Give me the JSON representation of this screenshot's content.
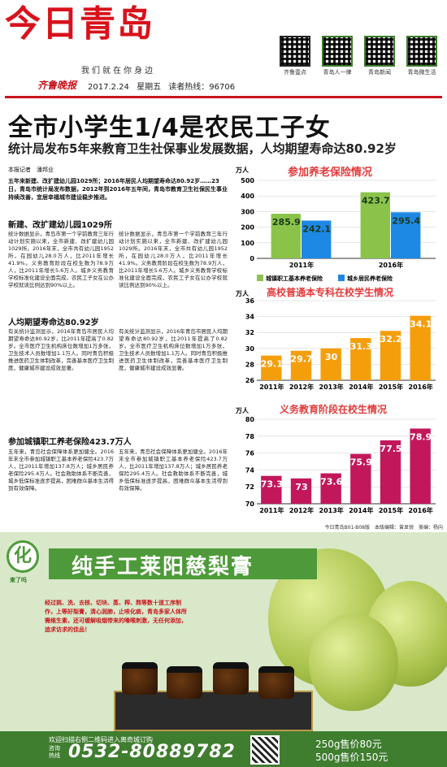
{
  "masthead": {
    "title": "今日青岛",
    "slogan": "我们就在你身边",
    "paper": "齐鲁晚报",
    "date": "2017.2.24",
    "weekday": "星期五",
    "hotline": "读者热线：96706",
    "qr_codes": [
      {
        "label": "齐鲁壹点"
      },
      {
        "label": "青岛人一律"
      },
      {
        "label": "青岛新闻"
      },
      {
        "label": "青岛微生活"
      }
    ]
  },
  "article": {
    "headline": "全市小学生1/4是农民工子女",
    "subhead": "统计局发布5年来教育卫生社保事业发展数据，人均期望寿命达80.92岁",
    "byline": "本报记者　潘邦业",
    "lead": "五年来新建、改扩建幼儿园1029所；2016年居民人均期望寿命达80.92岁……23日，青岛市统计局发布数据，2012年到2016年五年间，青岛市教育卫生社保民生事业持续改善，宜居幸福城市建设稳步推进。",
    "sections": [
      {
        "title": "新建、改扩建幼儿园1029所",
        "text": "统计数据显示，青岛市第一个学前教育三年行动计划实施以来，全市新建、改扩建幼儿园1029所。2016年末，全市共有幼儿园1952所，在园幼儿28.0万人，比2011年增长41.9%。义务教育阶段在校生数为78.9万人，比2011年增长5.6万人。城乡义务教育学校标准化建设全面完成，农民工子女在公办学校就读比例达到90%以上。"
      },
      {
        "title": "人均期望寿命达80.92岁",
        "text": "有关统计监测显示，2016年青岛市居民人均期望寿命达80.92岁，比2011年提高了0.82岁。全市医疗卫生机构床位数增加1万多张，卫生技术人员数增加1.1万人。同时青岛积极推进医药卫生体制改革，完善基本医疗卫生制度，健康城市建设成效显著。"
      },
      {
        "title": "参加城镇职工养老保险423.7万人",
        "text": "五年来，青岛社会保障体系更加健全。2016年末全市参加城镇职工基本养老保险423.7万人，比2011年增加137.8万人；城乡居民养老保险295.4万人。社会救助体系不断完善，城乡低保标准逐步提高，困难群众基本生活得到有效保障。"
      }
    ],
    "source_line": "今日青岛B01-B08版　本版编辑：曾显锐　美编：杨向"
  },
  "charts": {
    "pension": {
      "title": "参加养老保险情况",
      "unit": "万人"
    },
    "college": {
      "title": "高校普通本专科在校学生情况",
      "unit": "万人"
    },
    "compulsory": {
      "title": "义务教育阶段在校生情况",
      "unit": "万人"
    }
  },
  "chart_data": [
    {
      "type": "bar",
      "title": "参加养老保险情况",
      "ylabel": "万人",
      "categories": [
        "2011年",
        "2016年"
      ],
      "series": [
        {
          "name": "城镇职工基本养老保险",
          "values": [
            285.9,
            423.7
          ],
          "color": "#8bc34a"
        },
        {
          "name": "城乡居民养老保险",
          "values": [
            242.1,
            295.4
          ],
          "color": "#1e88e5"
        }
      ],
      "ylim": [
        0,
        500
      ],
      "yticks": [
        0,
        100,
        200,
        300,
        400,
        500
      ],
      "legend": "bottom"
    },
    {
      "type": "bar",
      "title": "高校普通本专科在校学生情况",
      "ylabel": "万人",
      "categories": [
        "2011年",
        "2012年",
        "2013年",
        "2014年",
        "2015年",
        "2016年"
      ],
      "values": [
        29.1,
        29.7,
        30.0,
        31.3,
        32.2,
        34.1
      ],
      "color": "#f59e0b",
      "ylim": [
        26,
        36
      ],
      "yticks": [
        26,
        28,
        30,
        32,
        34,
        36
      ]
    },
    {
      "type": "bar",
      "title": "义务教育阶段在校生情况",
      "ylabel": "万人",
      "categories": [
        "2011年",
        "2012年",
        "2013年",
        "2014年",
        "2015年",
        "2016年"
      ],
      "values": [
        73.3,
        73.0,
        73.6,
        75.9,
        77.5,
        78.9
      ],
      "color": "#c2185b",
      "ylim": [
        70,
        80
      ],
      "yticks": [
        70.0,
        72.0,
        74.0,
        76.0,
        78.0,
        80.0
      ]
    }
  ],
  "ad": {
    "logo_char": "化",
    "logo_text": "東了吗",
    "title": "纯手工莱阳慈梨膏",
    "description": "经过挑、洗、去核、切块、蒸、榨、熬等数十道工序制作，上等好梨膏，清心润肺，止咳化痰，青岛多家人体所需维生素，还可缓解吸烟带来的嗓喉刺激，无任何添加，追求访求的佳品！",
    "cta": "欢迎扫描右侧二维码进入离奇城订购",
    "hotline_label": "咨询热线",
    "phone": "0532-80889782",
    "prices": [
      "250g售价80元",
      "500g售价150元"
    ]
  }
}
